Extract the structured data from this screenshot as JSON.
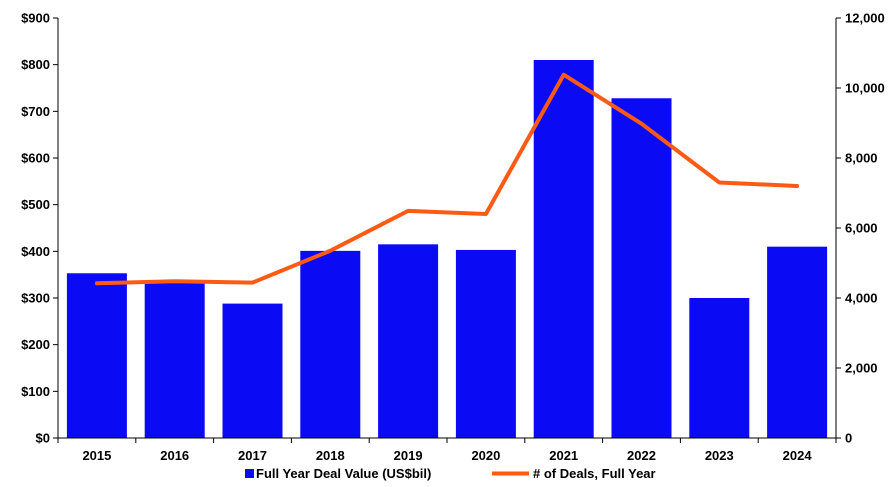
{
  "chart_data": {
    "type": "bar",
    "categories": [
      "2015",
      "2016",
      "2017",
      "2018",
      "2019",
      "2020",
      "2021",
      "2022",
      "2023",
      "2024"
    ],
    "series": [
      {
        "name": "Full Year Deal Value (US$bil)",
        "type": "bar",
        "axis": "left",
        "color": "#0A0AF5",
        "values": [
          353,
          337,
          288,
          401,
          415,
          403,
          810,
          728,
          300,
          410
        ]
      },
      {
        "name": "# of Deals, Full Year",
        "type": "line",
        "axis": "right",
        "color": "#FF5A14",
        "values": [
          4420,
          4480,
          4440,
          5350,
          6490,
          6400,
          10380,
          8980,
          7300,
          7200
        ]
      }
    ],
    "y_left": {
      "ylim": [
        0,
        900
      ],
      "ticks": [
        0,
        100,
        200,
        300,
        400,
        500,
        600,
        700,
        800,
        900
      ],
      "tick_labels": [
        "$0",
        "$100",
        "$200",
        "$300",
        "$400",
        "$500",
        "$600",
        "$700",
        "$800",
        "$900"
      ]
    },
    "y_right": {
      "ylim": [
        0,
        12000
      ],
      "ticks": [
        0,
        2000,
        4000,
        6000,
        8000,
        10000,
        12000
      ],
      "tick_labels": [
        "0",
        "2,000",
        "4,000",
        "6,000",
        "8,000",
        "10,000",
        "12,000"
      ]
    },
    "title": "",
    "xlabel": "",
    "ylabel": "",
    "grid": false,
    "legend_position": "bottom"
  }
}
